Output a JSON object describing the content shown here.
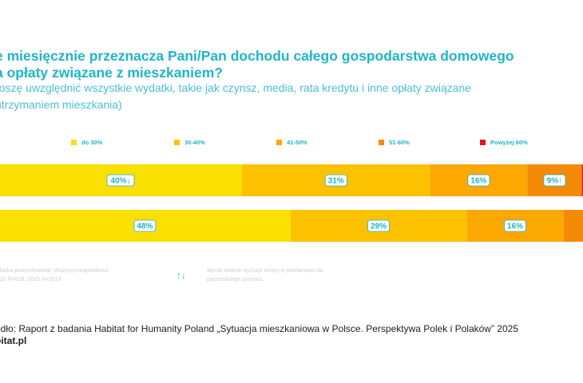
{
  "header": {
    "title_line1": "e miesięcznie przeznacza Pani/Pan dochodu całego gospodarstwa domowego",
    "title_line2": "a opłaty związane  z mieszkaniem?",
    "subtitle_line1": "roszę uwzględnić wszystkie wydatki, takie jak czynsz, media, rata kredytu i inne opłaty związane",
    "subtitle_line2": "utrzymaniem mieszkania)"
  },
  "chart_data": {
    "type": "bar",
    "orientation": "horizontal",
    "stacked": true,
    "percent_stacked": true,
    "legend_position": "top",
    "grid": false,
    "xlim": [
      0,
      100
    ],
    "categories": [
      "",
      ""
    ],
    "series": [
      {
        "name": "do 30%",
        "color": "#f9e000",
        "values": [
          40,
          48
        ]
      },
      {
        "name": "30-40%",
        "color": "#fcc200",
        "values": [
          31,
          29
        ]
      },
      {
        "name": "41-50%",
        "color": "#fba800",
        "values": [
          16,
          16
        ]
      },
      {
        "name": "51-60%",
        "color": "#f58a07",
        "values": [
          9,
          7
        ]
      },
      {
        "name": "Powyżej 60%",
        "color": "#e3141e",
        "values": [
          4,
          0
        ]
      }
    ],
    "data_labels": [
      [
        "40%↓",
        "31%",
        "16%",
        "9%↑",
        ""
      ],
      [
        "48%",
        "29%",
        "16%",
        "",
        ""
      ]
    ]
  },
  "notes": {
    "base_line1": "alaska procentowanie: Wszyscy respondenci",
    "base_line2": "022 N=628, 2025 N=1013.",
    "arrows": "↑↓",
    "sig_line1": "Wynik istotnie wyższy/ niższy w porównaniu do",
    "sig_line2": "poprzedniego pomiaru."
  },
  "footer": {
    "source": "ódło: Raport z badania Habitat for Humanity Poland „Sytuacja mieszkaniowa w Polsce. Perspektywa Polek i Polaków” 2025",
    "site": "bitat.pl"
  }
}
